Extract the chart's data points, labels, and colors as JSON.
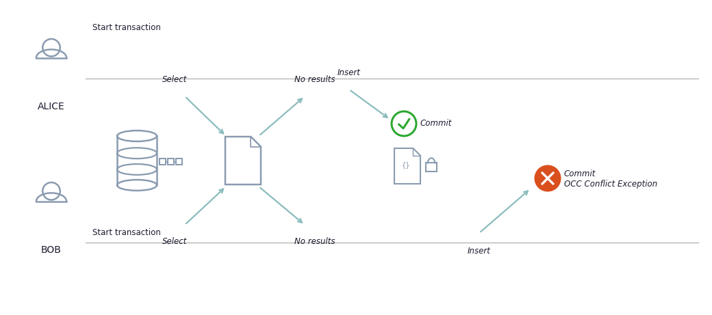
{
  "bg_color": "#ffffff",
  "line_color": "#b0b0b0",
  "arrow_color": "#8bbcbc",
  "text_color": "#1a1a2e",
  "icon_color": "#8a9bb0",
  "green_color": "#2da832",
  "red_color": "#d94f1e",
  "alice_label": "ALICE",
  "bob_label": "BOB",
  "start_tx": "Start transaction",
  "select_text": "Select",
  "no_results_text": "No results",
  "insert_text": "Insert",
  "commit_text": "Commit",
  "commit_occ_line1": "Commit",
  "commit_occ_line2": "OCC Conflict Exception",
  "figw": 10.4,
  "figh": 4.61,
  "dpi": 100
}
